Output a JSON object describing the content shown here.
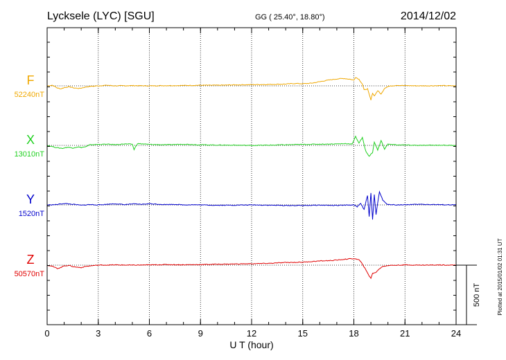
{
  "header": {
    "station": "Lycksele (LYC)  [SGU]",
    "coords": "GG ( 25.40°,  18.80°)",
    "date": "2014/12/02"
  },
  "footer_note": "Plotted at 2015/01/02 01:31  UT",
  "scale_label": "500 nT",
  "chart_data": {
    "type": "line",
    "xlabel": "U T (hour)",
    "xlim": [
      0,
      24
    ],
    "x_ticks": [
      "0",
      "3",
      "6",
      "9",
      "12",
      "15",
      "18",
      "21",
      "24"
    ],
    "scale_bar_nT": 500,
    "series": [
      {
        "name": "F",
        "baseline_label": "52240nT",
        "color": "#f0a800",
        "points": [
          [
            0,
            0
          ],
          [
            0.3,
            5
          ],
          [
            0.6,
            -18
          ],
          [
            0.8,
            -25
          ],
          [
            1.0,
            -15
          ],
          [
            1.3,
            -8
          ],
          [
            1.6,
            -18
          ],
          [
            1.9,
            -22
          ],
          [
            2.2,
            -12
          ],
          [
            2.5,
            -5
          ],
          [
            3,
            0
          ],
          [
            3.5,
            5
          ],
          [
            4,
            0
          ],
          [
            5,
            2
          ],
          [
            6,
            0
          ],
          [
            7,
            2
          ],
          [
            8,
            3
          ],
          [
            9,
            5
          ],
          [
            10,
            5
          ],
          [
            11,
            8
          ],
          [
            12,
            10
          ],
          [
            13,
            12
          ],
          [
            14,
            15
          ],
          [
            14.5,
            20
          ],
          [
            15,
            18
          ],
          [
            15.5,
            22
          ],
          [
            16,
            35
          ],
          [
            16.5,
            48
          ],
          [
            17,
            58
          ],
          [
            17.4,
            62
          ],
          [
            17.8,
            55
          ],
          [
            18,
            48
          ],
          [
            18.1,
            72
          ],
          [
            18.3,
            55
          ],
          [
            18.5,
            15
          ],
          [
            18.6,
            -35
          ],
          [
            18.8,
            -25
          ],
          [
            19.0,
            -120
          ],
          [
            19.1,
            -60
          ],
          [
            19.2,
            -85
          ],
          [
            19.4,
            -40
          ],
          [
            19.6,
            -70
          ],
          [
            19.8,
            -20
          ],
          [
            20,
            -5
          ],
          [
            20.5,
            5
          ],
          [
            21,
            2
          ],
          [
            22,
            0
          ],
          [
            23,
            2
          ],
          [
            24,
            0
          ]
        ]
      },
      {
        "name": "X",
        "baseline_label": "13010nT",
        "color": "#1fd01f",
        "points": [
          [
            0,
            0
          ],
          [
            0.3,
            -10
          ],
          [
            0.6,
            -20
          ],
          [
            0.9,
            -25
          ],
          [
            1.2,
            -15
          ],
          [
            1.5,
            -22
          ],
          [
            1.8,
            -12
          ],
          [
            2.0,
            -18
          ],
          [
            2.3,
            -10
          ],
          [
            2.5,
            5
          ],
          [
            3,
            8
          ],
          [
            3.5,
            10
          ],
          [
            4,
            6
          ],
          [
            4.5,
            12
          ],
          [
            5,
            10
          ],
          [
            5.1,
            -35
          ],
          [
            5.3,
            15
          ],
          [
            6,
            8
          ],
          [
            7,
            5
          ],
          [
            8,
            10
          ],
          [
            9,
            5
          ],
          [
            10,
            3
          ],
          [
            11,
            2
          ],
          [
            12,
            0
          ],
          [
            13,
            2
          ],
          [
            14,
            5
          ],
          [
            15,
            8
          ],
          [
            16,
            10
          ],
          [
            17,
            12
          ],
          [
            17.5,
            15
          ],
          [
            17.9,
            12
          ],
          [
            18,
            40
          ],
          [
            18.1,
            75
          ],
          [
            18.3,
            20
          ],
          [
            18.5,
            65
          ],
          [
            18.7,
            -50
          ],
          [
            18.9,
            -90
          ],
          [
            19.1,
            -60
          ],
          [
            19.2,
            30
          ],
          [
            19.4,
            -40
          ],
          [
            19.6,
            40
          ],
          [
            19.8,
            -30
          ],
          [
            20,
            10
          ],
          [
            20.5,
            5
          ],
          [
            21,
            3
          ],
          [
            22,
            0
          ],
          [
            23,
            2
          ],
          [
            24,
            0
          ]
        ]
      },
      {
        "name": "Y",
        "baseline_label": "1520nT",
        "color": "#0000cc",
        "points": [
          [
            0,
            0
          ],
          [
            0.5,
            2
          ],
          [
            1.0,
            12
          ],
          [
            1.5,
            5
          ],
          [
            2,
            -3
          ],
          [
            2.5,
            3
          ],
          [
            3,
            0
          ],
          [
            3.5,
            5
          ],
          [
            4,
            10
          ],
          [
            4.5,
            2
          ],
          [
            5,
            8
          ],
          [
            5.5,
            5
          ],
          [
            6,
            10
          ],
          [
            6.5,
            6
          ],
          [
            7,
            3
          ],
          [
            7.5,
            5
          ],
          [
            8,
            0
          ],
          [
            8.5,
            2
          ],
          [
            9,
            0
          ],
          [
            10,
            -3
          ],
          [
            11,
            -2
          ],
          [
            12,
            0
          ],
          [
            13,
            -2
          ],
          [
            14,
            -5
          ],
          [
            15,
            -5
          ],
          [
            16,
            -2
          ],
          [
            17,
            -5
          ],
          [
            17.5,
            -2
          ],
          [
            18,
            0
          ],
          [
            18.2,
            -15
          ],
          [
            18.4,
            15
          ],
          [
            18.6,
            -40
          ],
          [
            18.8,
            80
          ],
          [
            18.9,
            -100
          ],
          [
            19.0,
            100
          ],
          [
            19.1,
            -120
          ],
          [
            19.2,
            90
          ],
          [
            19.3,
            -80
          ],
          [
            19.5,
            110
          ],
          [
            19.7,
            40
          ],
          [
            19.9,
            10
          ],
          [
            20,
            5
          ],
          [
            20.5,
            0
          ],
          [
            21,
            2
          ],
          [
            22,
            5
          ],
          [
            23,
            2
          ],
          [
            24,
            0
          ]
        ]
      },
      {
        "name": "Z",
        "baseline_label": "50570nT",
        "color": "#e00000",
        "points": [
          [
            0,
            0
          ],
          [
            0.3,
            -10
          ],
          [
            0.6,
            -28
          ],
          [
            0.8,
            -20
          ],
          [
            1.0,
            -5
          ],
          [
            1.3,
            -3
          ],
          [
            1.6,
            -15
          ],
          [
            2,
            -20
          ],
          [
            2.3,
            -10
          ],
          [
            2.6,
            -5
          ],
          [
            3,
            0
          ],
          [
            4,
            2
          ],
          [
            5,
            0
          ],
          [
            6,
            2
          ],
          [
            7,
            5
          ],
          [
            8,
            3
          ],
          [
            9,
            5
          ],
          [
            10,
            8
          ],
          [
            11,
            10
          ],
          [
            12,
            12
          ],
          [
            13,
            15
          ],
          [
            14,
            22
          ],
          [
            15,
            25
          ],
          [
            16,
            35
          ],
          [
            16.5,
            38
          ],
          [
            17,
            42
          ],
          [
            17.5,
            50
          ],
          [
            18,
            55
          ],
          [
            18.3,
            45
          ],
          [
            18.5,
            10
          ],
          [
            18.7,
            -40
          ],
          [
            18.9,
            -90
          ],
          [
            19.0,
            -110
          ],
          [
            19.1,
            -70
          ],
          [
            19.3,
            -60
          ],
          [
            19.5,
            -30
          ],
          [
            19.7,
            -10
          ],
          [
            20,
            -3
          ],
          [
            21,
            2
          ],
          [
            22,
            0
          ],
          [
            23,
            2
          ],
          [
            24,
            0
          ]
        ]
      }
    ]
  }
}
